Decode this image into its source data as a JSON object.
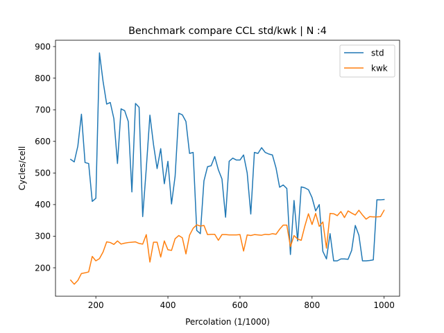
{
  "chart_data": {
    "type": "line",
    "title": "Benchmark compare CCL std/kwk | N :4",
    "xlabel": "Percolation (1/1000)",
    "ylabel": "Cycles/cell",
    "xlim": [
      88,
      1043
    ],
    "ylim": [
      110,
      920
    ],
    "xticks": [
      200,
      400,
      600,
      800,
      1000
    ],
    "yticks": [
      200,
      300,
      400,
      500,
      600,
      700,
      800,
      900
    ],
    "grid": false,
    "legend_position": "top-right",
    "series": [
      {
        "name": "std",
        "color": "#1f77b4",
        "x": [
          130,
          140,
          150,
          160,
          170,
          180,
          190,
          200,
          210,
          220,
          230,
          240,
          250,
          260,
          270,
          280,
          290,
          300,
          310,
          320,
          330,
          340,
          350,
          360,
          370,
          380,
          390,
          400,
          410,
          420,
          430,
          440,
          450,
          460,
          470,
          480,
          490,
          500,
          510,
          520,
          530,
          540,
          550,
          560,
          570,
          580,
          590,
          600,
          610,
          620,
          630,
          640,
          650,
          660,
          670,
          680,
          690,
          700,
          710,
          720,
          730,
          740,
          750,
          760,
          770,
          780,
          790,
          800,
          810,
          820,
          830,
          840,
          850,
          860,
          870,
          880,
          890,
          900,
          910,
          920,
          930,
          940,
          950,
          960,
          970,
          980,
          990,
          1000
        ],
        "y": [
          543,
          535,
          585,
          686,
          533,
          530,
          410,
          420,
          880,
          790,
          718,
          723,
          672,
          530,
          703,
          697,
          663,
          440,
          720,
          708,
          362,
          515,
          683,
          590,
          514,
          577,
          466,
          537,
          402,
          490,
          689,
          684,
          663,
          562,
          565,
          318,
          308,
          475,
          520,
          523,
          552,
          510,
          481,
          360,
          537,
          547,
          541,
          541,
          557,
          500,
          370,
          565,
          562,
          580,
          565,
          560,
          557,
          516,
          455,
          462,
          451,
          242,
          413,
          285,
          456,
          453,
          447,
          422,
          380,
          400,
          252,
          228,
          308,
          222,
          222,
          228,
          228,
          227,
          255,
          334,
          303,
          222,
          222,
          223,
          225,
          415,
          415,
          416
        ]
      },
      {
        "name": "kwk",
        "color": "#ff7f0e",
        "x": [
          130,
          140,
          150,
          160,
          170,
          180,
          190,
          200,
          210,
          220,
          230,
          240,
          250,
          260,
          270,
          280,
          290,
          300,
          310,
          320,
          330,
          340,
          350,
          360,
          370,
          380,
          390,
          400,
          410,
          420,
          430,
          440,
          450,
          460,
          470,
          480,
          490,
          500,
          510,
          520,
          530,
          540,
          550,
          560,
          570,
          580,
          590,
          600,
          610,
          620,
          630,
          640,
          650,
          660,
          670,
          680,
          690,
          700,
          710,
          720,
          730,
          740,
          750,
          760,
          770,
          780,
          790,
          800,
          810,
          820,
          830,
          840,
          850,
          860,
          870,
          880,
          890,
          900,
          910,
          920,
          930,
          940,
          950,
          960,
          970,
          980,
          990,
          1000
        ],
        "y": [
          161,
          148,
          160,
          182,
          184,
          187,
          236,
          222,
          229,
          250,
          282,
          280,
          274,
          285,
          275,
          278,
          280,
          281,
          282,
          277,
          275,
          305,
          218,
          281,
          281,
          234,
          285,
          257,
          255,
          292,
          302,
          295,
          244,
          303,
          325,
          336,
          332,
          334,
          305,
          306,
          306,
          287,
          305,
          305,
          304,
          304,
          304,
          305,
          253,
          304,
          302,
          305,
          304,
          303,
          306,
          305,
          308,
          306,
          322,
          335,
          335,
          267,
          302,
          291,
          287,
          332,
          371,
          337,
          372,
          331,
          345,
          262,
          372,
          371,
          365,
          378,
          359,
          380,
          373,
          367,
          382,
          367,
          354,
          362,
          361,
          361,
          362,
          382
        ]
      }
    ]
  }
}
